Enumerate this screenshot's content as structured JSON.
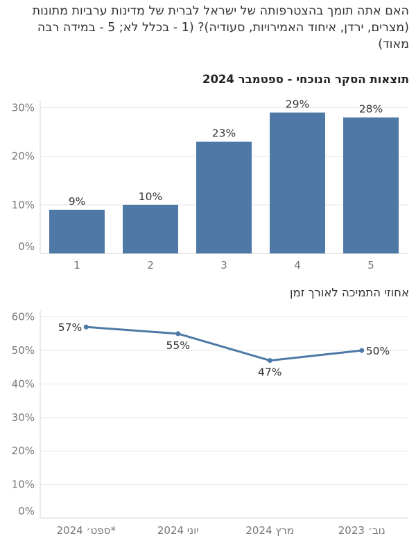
{
  "question": "האם אתה תומך בהצטרפותה של ישראל לברית של מדינות ערביות מתונות (מצרים, ירדן, איחוד האמירויות, סעודיה)? (1 - בכלל לא; 5 - במידה רבה מאוד)",
  "colors": {
    "accent": "#4e79a7",
    "grid": "#e6e6e6",
    "axis": "#d4d4d4"
  },
  "chart_data": [
    {
      "type": "bar",
      "title": "תוצאות הסקר הנוכחי - ספטמבר 2024",
      "categories": [
        "1",
        "2",
        "3",
        "4",
        "5"
      ],
      "values": [
        9,
        10,
        23,
        29,
        28
      ],
      "value_labels": [
        "9%",
        "10%",
        "23%",
        "29%",
        "28%"
      ],
      "yticks": [
        0,
        10,
        20,
        30
      ],
      "ytick_labels": [
        "0%",
        "10%",
        "20%",
        "30%"
      ],
      "ylim": [
        0,
        31.5
      ],
      "grid": true
    },
    {
      "type": "line",
      "title": "אחוזי התמיכה לאורך זמן",
      "x": [
        "ספט׳ 2024*",
        "יוני 2024",
        "מרץ 2024",
        "נוב׳ 2023"
      ],
      "values": [
        57,
        55,
        47,
        50
      ],
      "value_labels": [
        "57%",
        "55%",
        "47%",
        "50%"
      ],
      "yticks": [
        0,
        10,
        20,
        30,
        40,
        50,
        60
      ],
      "ytick_labels": [
        "0%",
        "10%",
        "20%",
        "30%",
        "40%",
        "50%",
        "60%"
      ],
      "ylim": [
        0,
        62
      ],
      "grid": true
    }
  ]
}
